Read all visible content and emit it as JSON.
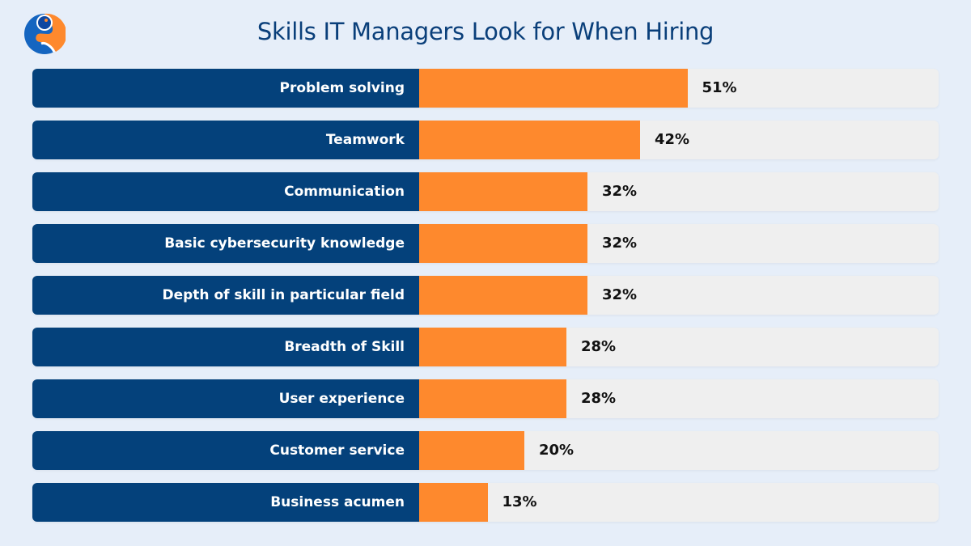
{
  "title": "Skills IT Managers Look for When Hiring",
  "colors": {
    "background": "#e6eef9",
    "label_bar": "#04417b",
    "value_bar": "#fe892d",
    "track": "#efefef",
    "title": "#0a3f7a"
  },
  "logo": {
    "icon": "brand-logo-icon"
  },
  "chart_data": {
    "type": "bar",
    "orientation": "horizontal",
    "title": "Skills IT Managers Look for When Hiring",
    "categories": [
      "Problem solving",
      "Teamwork",
      "Communication",
      "Basic cybersecurity knowledge",
      "Depth of skill in particular field",
      "Breadth of Skill",
      "User experience",
      "Customer service",
      "Business acumen"
    ],
    "values": [
      51,
      42,
      32,
      32,
      32,
      28,
      28,
      20,
      13
    ],
    "value_labels": [
      "51%",
      "42%",
      "32%",
      "32%",
      "32%",
      "28%",
      "28%",
      "20%",
      "13%"
    ],
    "unit": "%",
    "xlabel": "",
    "ylabel": "",
    "xlim": [
      0,
      100
    ],
    "grid": false,
    "legend": null
  },
  "rows": [
    {
      "label": "Problem solving",
      "value": 51,
      "text": "51%"
    },
    {
      "label": "Teamwork",
      "value": 42,
      "text": "42%"
    },
    {
      "label": "Communication",
      "value": 32,
      "text": "32%"
    },
    {
      "label": "Basic cybersecurity knowledge",
      "value": 32,
      "text": "32%"
    },
    {
      "label": "Depth of skill in particular field",
      "value": 32,
      "text": "32%"
    },
    {
      "label": "Breadth of Skill",
      "value": 28,
      "text": "28%"
    },
    {
      "label": "User experience",
      "value": 28,
      "text": "28%"
    },
    {
      "label": "Customer service",
      "value": 20,
      "text": "20%"
    },
    {
      "label": "Business acumen",
      "value": 13,
      "text": "13%"
    }
  ]
}
